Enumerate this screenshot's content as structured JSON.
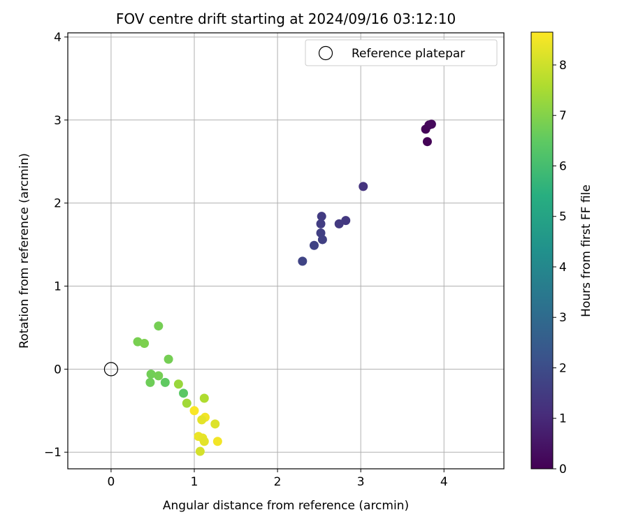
{
  "chart_data": {
    "type": "scatter",
    "title": "FOV centre drift starting at 2024/09/16 03:12:10",
    "xlabel": "Angular distance from reference (arcmin)",
    "ylabel": "Rotation from reference (arcmin)",
    "xlim": [
      -0.52,
      4.72
    ],
    "ylim": [
      -1.2,
      4.05
    ],
    "xticks": [
      0,
      1,
      2,
      3,
      4
    ],
    "yticks": [
      -1,
      0,
      1,
      2,
      3,
      4
    ],
    "grid": true,
    "legend": {
      "position": "top-right",
      "entries": [
        "Reference platepar"
      ]
    },
    "reference_point": {
      "label": "Reference platepar",
      "x": 0,
      "y": 0
    },
    "colorbar": {
      "label": "Hours from first FF file",
      "colormap": "viridis",
      "range": [
        0,
        8.65
      ],
      "ticks": [
        0,
        1,
        2,
        3,
        4,
        5,
        6,
        7,
        8
      ]
    },
    "series": [
      {
        "points": [
          {
            "x": 3.8,
            "y": 2.74,
            "c": 0.05
          },
          {
            "x": 3.78,
            "y": 2.89,
            "c": 0.1
          },
          {
            "x": 3.82,
            "y": 2.94,
            "c": 0.15
          },
          {
            "x": 3.85,
            "y": 2.95,
            "c": 0.2
          },
          {
            "x": 3.03,
            "y": 2.2,
            "c": 1.3
          },
          {
            "x": 2.53,
            "y": 1.84,
            "c": 1.5
          },
          {
            "x": 2.52,
            "y": 1.75,
            "c": 1.55
          },
          {
            "x": 2.82,
            "y": 1.79,
            "c": 1.4
          },
          {
            "x": 2.74,
            "y": 1.75,
            "c": 1.45
          },
          {
            "x": 2.52,
            "y": 1.64,
            "c": 1.6
          },
          {
            "x": 2.54,
            "y": 1.56,
            "c": 1.65
          },
          {
            "x": 2.44,
            "y": 1.49,
            "c": 1.7
          },
          {
            "x": 2.3,
            "y": 1.3,
            "c": 1.75
          },
          {
            "x": 0.57,
            "y": 0.52,
            "c": 6.8
          },
          {
            "x": 0.32,
            "y": 0.33,
            "c": 6.85
          },
          {
            "x": 0.4,
            "y": 0.31,
            "c": 6.9
          },
          {
            "x": 0.69,
            "y": 0.12,
            "c": 6.8
          },
          {
            "x": 0.48,
            "y": -0.06,
            "c": 6.75
          },
          {
            "x": 0.57,
            "y": -0.08,
            "c": 6.8
          },
          {
            "x": 0.47,
            "y": -0.16,
            "c": 6.7
          },
          {
            "x": 0.65,
            "y": -0.16,
            "c": 6.5
          },
          {
            "x": 0.81,
            "y": -0.18,
            "c": 7.3
          },
          {
            "x": 0.87,
            "y": -0.29,
            "c": 6.4
          },
          {
            "x": 0.91,
            "y": -0.41,
            "c": 7.4
          },
          {
            "x": 1.12,
            "y": -0.35,
            "c": 7.6
          },
          {
            "x": 1.0,
            "y": -0.5,
            "c": 8.6
          },
          {
            "x": 1.13,
            "y": -0.58,
            "c": 8.5
          },
          {
            "x": 1.09,
            "y": -0.61,
            "c": 8.3
          },
          {
            "x": 1.25,
            "y": -0.66,
            "c": 8.2
          },
          {
            "x": 1.05,
            "y": -0.81,
            "c": 8.4
          },
          {
            "x": 1.1,
            "y": -0.83,
            "c": 8.35
          },
          {
            "x": 1.12,
            "y": -0.87,
            "c": 8.3
          },
          {
            "x": 1.28,
            "y": -0.87,
            "c": 8.5
          },
          {
            "x": 1.07,
            "y": -0.99,
            "c": 8.1
          }
        ]
      }
    ]
  }
}
